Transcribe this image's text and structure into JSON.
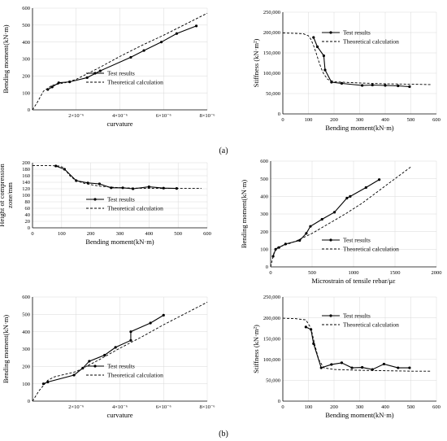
{
  "panel_labels": [
    "(a)",
    "(b)"
  ],
  "chart_data": [
    {
      "type": "line",
      "xlabel": "curvature",
      "ylabel": "Bending moment(kN·m)",
      "xlim": [
        0,
        8e-06
      ],
      "ylim": [
        0,
        600
      ],
      "xticks": [
        2e-06,
        4e-06,
        6e-06,
        8e-06
      ],
      "xtick_labels": [
        "2×10⁻⁶",
        "4×10⁻⁶",
        "6×10⁻⁶",
        "8×10⁻⁶"
      ],
      "yticks": [
        0,
        100,
        200,
        300,
        400,
        500,
        600
      ],
      "ytick_labels": [
        "0",
        "100",
        "200",
        "300",
        "400",
        "500",
        "600"
      ],
      "grid": true,
      "legend_position": "lower-right",
      "series": [
        {
          "name": "Test results",
          "style": "solid-marker",
          "x": [
            7e-07,
            9e-07,
            1.2e-06,
            1.7e-06,
            2.5e-06,
            3.1e-06,
            4.5e-06,
            5.1e-06,
            5.9e-06,
            6.6e-06,
            7.5e-06
          ],
          "y": [
            120,
            135,
            160,
            165,
            190,
            230,
            310,
            350,
            400,
            450,
            495
          ]
        },
        {
          "name": "Theoretical calculation",
          "style": "dashed",
          "x": [
            0,
            2e-07,
            5e-07,
            9e-07,
            1.5e-06,
            2e-06,
            3e-06,
            4e-06,
            5e-06,
            6e-06,
            7e-06,
            8e-06
          ],
          "y": [
            0,
            40,
            110,
            145,
            160,
            180,
            245,
            315,
            380,
            440,
            505,
            570
          ]
        }
      ]
    },
    {
      "type": "line",
      "xlabel": "Bending moment(kN·m)",
      "ylabel": "Stiffness (kN·m²)",
      "xlim": [
        0,
        600
      ],
      "ylim": [
        0,
        250000
      ],
      "xticks": [
        0,
        100,
        200,
        300,
        400,
        500,
        600
      ],
      "xtick_labels": [
        "0",
        "100",
        "200",
        "300",
        "400",
        "500",
        "600"
      ],
      "yticks": [
        0,
        50000,
        100000,
        150000,
        200000,
        250000
      ],
      "ytick_labels": [
        "0",
        "50,000",
        "100,000",
        "150,000",
        "200,000",
        "250,000"
      ],
      "grid": true,
      "legend_position": "top-right",
      "series": [
        {
          "name": "Test results",
          "style": "solid-marker",
          "x": [
            120,
            135,
            160,
            165,
            190,
            230,
            310,
            350,
            400,
            450,
            495
          ],
          "y": [
            188000,
            165000,
            143000,
            108000,
            78000,
            75000,
            70000,
            71000,
            70000,
            69000,
            67000
          ]
        },
        {
          "name": "Theoretical calculation",
          "style": "dashed",
          "x": [
            0,
            50,
            80,
            100,
            110,
            120,
            130,
            140,
            150,
            160,
            175,
            200,
            300,
            400,
            500,
            580
          ],
          "y": [
            199000,
            198000,
            197000,
            192000,
            183000,
            168000,
            150000,
            130000,
            112000,
            98000,
            85000,
            79000,
            76000,
            74000,
            73000,
            72000
          ]
        }
      ]
    },
    {
      "type": "line",
      "xlabel": "Bending moment(kN·m)",
      "ylabel": "Height of compression zone/mm",
      "ylabel_lines": [
        "Height of compression",
        "zone/mm"
      ],
      "xlim": [
        0,
        600
      ],
      "ylim": [
        0,
        200
      ],
      "xticks": [
        0,
        100,
        200,
        300,
        400,
        500,
        600
      ],
      "xtick_labels": [
        "0",
        "100",
        "200",
        "300",
        "400",
        "500",
        "600"
      ],
      "yticks": [
        0,
        20,
        40,
        60,
        80,
        100,
        120,
        140,
        160,
        180,
        200
      ],
      "ytick_labels": [
        "0",
        "20",
        "40",
        "60",
        "80",
        "100",
        "120",
        "140",
        "160",
        "180",
        "200"
      ],
      "grid": true,
      "legend_position": "lower-right",
      "series": [
        {
          "name": "Test results",
          "style": "solid-marker",
          "x": [
            80,
            110,
            150,
            190,
            230,
            270,
            310,
            345,
            400,
            450,
            495
          ],
          "y": [
            190,
            180,
            145,
            138,
            135,
            123,
            123,
            120,
            126,
            122,
            121
          ]
        },
        {
          "name": "Theoretical calculation",
          "style": "dashed",
          "x": [
            0,
            60,
            90,
            105,
            115,
            130,
            150,
            180,
            230,
            300,
            400,
            500,
            580
          ],
          "y": [
            191,
            191,
            190,
            186,
            175,
            158,
            145,
            136,
            128,
            123,
            121,
            121,
            121
          ]
        }
      ]
    },
    {
      "type": "line",
      "xlabel": "Microstrain of tensile rebar/με",
      "ylabel": "Bending moment(kN·m)",
      "xlim": [
        0,
        2000
      ],
      "ylim": [
        0,
        600
      ],
      "xticks": [
        0,
        500,
        1000,
        1500,
        2000
      ],
      "xtick_labels": [
        "0",
        "500",
        "1000",
        "1500",
        "2000"
      ],
      "yticks": [
        0,
        100,
        200,
        300,
        400,
        500,
        600
      ],
      "ytick_labels": [
        "0",
        "100",
        "200",
        "300",
        "400",
        "500",
        "600"
      ],
      "grid": true,
      "legend_position": "lower-right",
      "series": [
        {
          "name": "Test results",
          "style": "solid-marker",
          "x": [
            30,
            60,
            100,
            180,
            350,
            430,
            480,
            620,
            770,
            920,
            960,
            1150,
            1310
          ],
          "y": [
            60,
            100,
            110,
            130,
            150,
            190,
            230,
            270,
            310,
            390,
            400,
            450,
            495
          ]
        },
        {
          "name": "Theoretical calculation",
          "style": "dashed",
          "x": [
            0,
            40,
            80,
            150,
            300,
            500,
            700,
            900,
            1100,
            1300,
            1500,
            1700
          ],
          "y": [
            0,
            80,
            110,
            120,
            145,
            190,
            245,
            300,
            360,
            430,
            500,
            570
          ]
        }
      ]
    },
    {
      "type": "line",
      "xlabel": "curvature",
      "ylabel": "Bending moment(kN·m)",
      "xlim": [
        0,
        8e-06
      ],
      "ylim": [
        0,
        600
      ],
      "xticks": [
        2e-06,
        4e-06,
        6e-06,
        8e-06
      ],
      "xtick_labels": [
        "2×10⁻⁶",
        "4×10⁻⁶",
        "6×10⁻⁶",
        "8×10⁻⁶"
      ],
      "yticks": [
        0,
        100,
        200,
        300,
        400,
        500,
        600
      ],
      "ytick_labels": [
        "0",
        "100",
        "200",
        "300",
        "400",
        "500",
        "600"
      ],
      "grid": true,
      "legend_position": "lower-right",
      "series": [
        {
          "name": "Test results",
          "style": "solid-marker",
          "x": [
            5e-07,
            7e-07,
            1.9e-06,
            2.3e-06,
            2.6e-06,
            3.3e-06,
            3.8e-06,
            4.5e-06,
            4.5e-06,
            5.4e-06,
            6e-06
          ],
          "y": [
            100,
            110,
            150,
            190,
            230,
            265,
            310,
            350,
            400,
            450,
            495
          ]
        },
        {
          "name": "Theoretical calculation",
          "style": "dashed",
          "x": [
            0,
            3e-07,
            7e-07,
            1e-06,
            2e-06,
            3e-06,
            4e-06,
            5e-06,
            6e-06,
            7e-06,
            8e-06
          ],
          "y": [
            0,
            60,
            120,
            140,
            170,
            235,
            305,
            370,
            440,
            505,
            570
          ]
        }
      ]
    },
    {
      "type": "line",
      "xlabel": "Bending moment(kN·m)",
      "ylabel": "Stiffness (kN·m²)",
      "xlim": [
        0,
        600
      ],
      "ylim": [
        0,
        250000
      ],
      "xticks": [
        0,
        100,
        200,
        300,
        400,
        500,
        600
      ],
      "xtick_labels": [
        "0",
        "100",
        "200",
        "300",
        "400",
        "500",
        "600"
      ],
      "yticks": [
        0,
        50000,
        100000,
        150000,
        200000,
        250000
      ],
      "ytick_labels": [
        "0",
        "50,000",
        "100,000",
        "150,000",
        "200,000",
        "250,000"
      ],
      "grid": true,
      "legend_position": "top-right",
      "series": [
        {
          "name": "Test results",
          "style": "solid-marker",
          "x": [
            90,
            110,
            120,
            150,
            190,
            230,
            270,
            310,
            350,
            395,
            450,
            495
          ],
          "y": [
            178000,
            172000,
            138000,
            80000,
            88000,
            92000,
            80000,
            81000,
            76000,
            89000,
            80000,
            80000
          ]
        },
        {
          "name": "Theoretical calculation",
          "style": "dashed",
          "x": [
            0,
            50,
            90,
            110,
            125,
            140,
            160,
            200,
            300,
            400,
            500,
            580
          ],
          "y": [
            199000,
            198000,
            195000,
            175000,
            135000,
            100000,
            80000,
            76000,
            74000,
            73000,
            72000,
            72000
          ]
        }
      ]
    }
  ]
}
